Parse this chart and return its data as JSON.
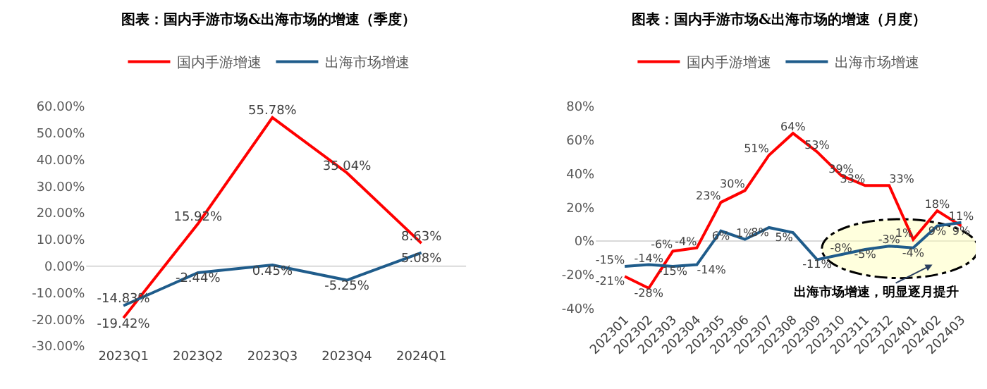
{
  "chart_data": [
    {
      "type": "line",
      "title": "图表：国内手游市场&出海市场的增速（季度）",
      "categories": [
        "2023Q1",
        "2023Q2",
        "2023Q3",
        "2023Q4",
        "2024Q1"
      ],
      "series": [
        {
          "name": "国内手游增速",
          "color": "#ff0000",
          "values": [
            -19.42,
            15.92,
            55.78,
            35.04,
            8.63
          ],
          "value_labels": [
            "-19.42%",
            "15.92%",
            "55.78%",
            "35.04%",
            "8.63%"
          ]
        },
        {
          "name": "出海市场增速",
          "color": "#1f5c8b",
          "values": [
            -14.83,
            -2.44,
            0.45,
            -5.25,
            5.08
          ],
          "value_labels": [
            "-14.83%",
            "-2.44%",
            "0.45%",
            "-5.25%",
            "5.08%"
          ]
        }
      ],
      "ylim": [
        -30,
        60
      ],
      "yticks": [
        {
          "value": -30,
          "label": "-30.00%"
        },
        {
          "value": -20,
          "label": "-20.00%"
        },
        {
          "value": -10,
          "label": "-10.00%"
        },
        {
          "value": 0,
          "label": "0.00%"
        },
        {
          "value": 10,
          "label": "10.00%"
        },
        {
          "value": 20,
          "label": "20.00%"
        },
        {
          "value": 30,
          "label": "30.00%"
        },
        {
          "value": 40,
          "label": "40.00%"
        },
        {
          "value": 50,
          "label": "50.00%"
        },
        {
          "value": 60,
          "label": "60.00%"
        }
      ],
      "ref_lines": [
        {
          "axis": "y",
          "value": 0,
          "color": "#d9d9d9"
        }
      ],
      "legend": "top",
      "marker": "none",
      "line_style": "solid"
    },
    {
      "type": "line",
      "title": "图表：国内手游市场&出海市场的增速（月度）",
      "categories": [
        "202301",
        "202302",
        "202303",
        "202304",
        "202305",
        "202306",
        "202307",
        "202308",
        "202309",
        "202310",
        "202311",
        "202312",
        "202401",
        "202402",
        "202403"
      ],
      "series": [
        {
          "name": "国内手游增速",
          "color": "#ff0000",
          "values": [
            -21,
            -28,
            -6,
            -4,
            23,
            30,
            51,
            64,
            53,
            39,
            33,
            33,
            1,
            18,
            9
          ],
          "value_labels": [
            "-21%",
            "-28%",
            "-6%",
            "-4%",
            "23%",
            "30%",
            "51%",
            "64%",
            "53%",
            "39%",
            "33%",
            "33%",
            "1%",
            "18%",
            "9%"
          ]
        },
        {
          "name": "出海市场增速",
          "color": "#1f5c8b",
          "values": [
            -15,
            -14,
            -15,
            -14,
            6,
            1,
            8,
            5,
            -11,
            -8,
            -5,
            -3,
            -4,
            9,
            11
          ],
          "value_labels": [
            "-15%",
            "-14%",
            "-15%",
            "-14%",
            "6%",
            "1%",
            "8%",
            "5%",
            "-11%",
            "-8%",
            "-5%",
            "-3%",
            "-4%",
            "9%",
            "11%"
          ]
        }
      ],
      "ylim": [
        -40,
        80
      ],
      "yticks": [
        {
          "value": -40,
          "label": "-40%"
        },
        {
          "value": -20,
          "label": "-20%"
        },
        {
          "value": 0,
          "label": "0%"
        },
        {
          "value": 20,
          "label": "20%"
        },
        {
          "value": 40,
          "label": "40%"
        },
        {
          "value": 60,
          "label": "60%"
        },
        {
          "value": 80,
          "label": "80%"
        }
      ],
      "ref_lines": [
        {
          "axis": "y",
          "value": 0,
          "color": "#d9d9d9"
        }
      ],
      "annotations": [
        "出海市场增速，明显逐月提升"
      ],
      "legend": "top",
      "marker": "none",
      "line_style": "solid"
    }
  ]
}
